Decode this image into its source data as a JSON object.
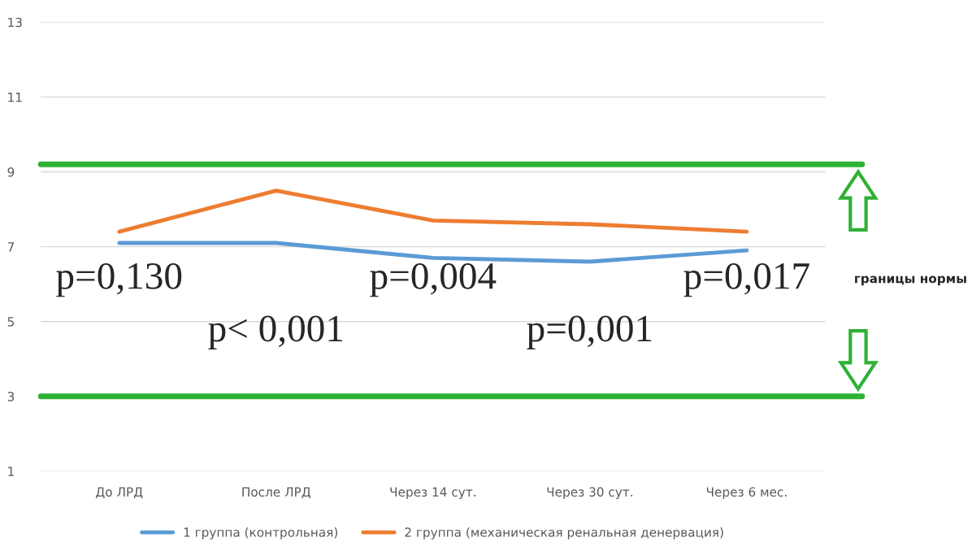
{
  "chart_data": {
    "type": "line",
    "categories": [
      "До ЛРД",
      "После ЛРД",
      "Через 14 сут.",
      "Через 30 сут.",
      "Через 6 мес."
    ],
    "series": [
      {
        "name": "1 группа (контрольная)",
        "color": "#5b9bd5",
        "values": [
          7.1,
          7.1,
          6.7,
          6.6,
          6.9
        ]
      },
      {
        "name": "2 группа (механическая ренальная денервация)",
        "color": "#ed7d31",
        "values": [
          7.4,
          8.5,
          7.7,
          7.6,
          7.4
        ]
      }
    ],
    "ylim": [
      1,
      13
    ],
    "yticks": [
      1,
      3,
      5,
      7,
      9,
      11,
      13
    ],
    "grid": "y",
    "legend": "bottom",
    "marker": "none",
    "line_style": "solid",
    "ref_lines": [
      {
        "axis": "y",
        "value": 9.2,
        "color": "#2eb135"
      },
      {
        "axis": "y",
        "value": 3,
        "color": "#2eb135"
      }
    ],
    "annotations": [
      "p=0,130",
      "p< 0,001",
      "p=0,004",
      "p=0,001",
      "p=0,017",
      "границы нормы"
    ]
  }
}
